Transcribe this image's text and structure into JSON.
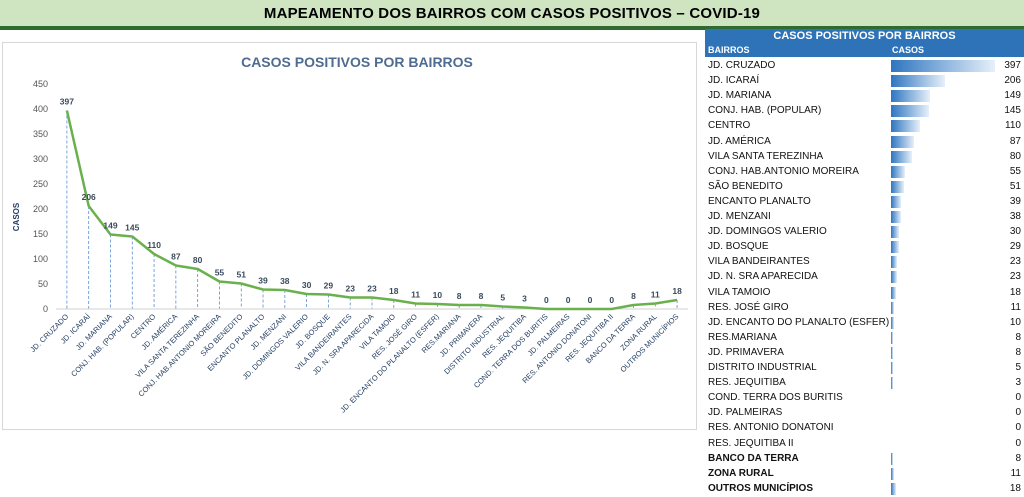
{
  "banner_title": "MAPEAMENTO DOS BAIRROS COM CASOS POSITIVOS – COVID-19",
  "colors": {
    "line": "#6ab04c",
    "bar": "#2e75c0",
    "table_header": "#2e73b8",
    "banner_bg": "#cfe5c2",
    "banner_rule": "#2f6b2f",
    "chart_title": "#4f6b8f"
  },
  "chart_data": {
    "type": "line",
    "title": "CASOS POSITIVOS POR BAIRROS",
    "xlabel": "",
    "ylabel": "CASOS",
    "ylim": [
      0,
      450
    ],
    "yticks": [
      0,
      50,
      100,
      150,
      200,
      250,
      300,
      350,
      400,
      450
    ],
    "grid": false,
    "data_labels": true,
    "categories": [
      "JD. CRUZADO",
      "JD. ICARAÍ",
      "JD. MARIANA",
      "CONJ. HAB. (POPULAR)",
      "CENTRO",
      "JD. AMÉRICA",
      "VILA SANTA TEREZINHA",
      "CONJ. HAB.ANTONIO MOREIRA",
      "SÃO BENEDITO",
      "ENCANTO PLANALTO",
      "JD. MENZANI",
      "JD. DOMINGOS VALERIO",
      "JD. BOSQUE",
      "VILA BANDEIRANTES",
      "JD. N. SRA APARECIDA",
      "VILA TAMOIO",
      "RES. JOSÉ GIRO",
      "JD. ENCANTO DO PLANALTO (ESFER)",
      "RES.MARIANA",
      "JD. PRIMAVERA",
      "DISTRITO INDUSTRIAL",
      "RES. JEQUITIBA",
      "COND. TERRA DOS BURITIS",
      "JD. PALMEIRAS",
      "RES. ANTONIO DONATONI",
      "RES. JEQUITIBA II",
      "BANCO DA TERRA",
      "ZONA RURAL",
      "OUTROS MUNICÍPIOS"
    ],
    "values": [
      397,
      206,
      149,
      145,
      110,
      87,
      80,
      55,
      51,
      39,
      38,
      30,
      29,
      23,
      23,
      18,
      11,
      10,
      8,
      8,
      5,
      3,
      0,
      0,
      0,
      0,
      8,
      11,
      18
    ]
  },
  "table": {
    "title": "CASOS POSITIVOS POR BAIRROS",
    "headers": {
      "bairros": "BAIRROS",
      "casos": "CASOS"
    },
    "bar_max": 397,
    "rows": [
      {
        "name": "JD. CRUZADO",
        "value": 397,
        "bold": false
      },
      {
        "name": "JD. ICARAÍ",
        "value": 206,
        "bold": false
      },
      {
        "name": "JD. MARIANA",
        "value": 149,
        "bold": false
      },
      {
        "name": "CONJ. HAB. (POPULAR)",
        "value": 145,
        "bold": false
      },
      {
        "name": "CENTRO",
        "value": 110,
        "bold": false
      },
      {
        "name": "JD. AMÉRICA",
        "value": 87,
        "bold": false
      },
      {
        "name": "VILA SANTA TEREZINHA",
        "value": 80,
        "bold": false
      },
      {
        "name": "CONJ. HAB.ANTONIO MOREIRA",
        "value": 55,
        "bold": false
      },
      {
        "name": "SÃO BENEDITO",
        "value": 51,
        "bold": false
      },
      {
        "name": "ENCANTO PLANALTO",
        "value": 39,
        "bold": false
      },
      {
        "name": "JD. MENZANI",
        "value": 38,
        "bold": false
      },
      {
        "name": "JD. DOMINGOS VALERIO",
        "value": 30,
        "bold": false
      },
      {
        "name": "JD. BOSQUE",
        "value": 29,
        "bold": false
      },
      {
        "name": "VILA BANDEIRANTES",
        "value": 23,
        "bold": false
      },
      {
        "name": "JD. N. SRA APARECIDA",
        "value": 23,
        "bold": false
      },
      {
        "name": "VILA TAMOIO",
        "value": 18,
        "bold": false
      },
      {
        "name": "RES. JOSÉ GIRO",
        "value": 11,
        "bold": false
      },
      {
        "name": "JD. ENCANTO DO PLANALTO (ESFER)",
        "value": 10,
        "bold": false
      },
      {
        "name": "RES.MARIANA",
        "value": 8,
        "bold": false
      },
      {
        "name": "JD. PRIMAVERA",
        "value": 8,
        "bold": false
      },
      {
        "name": "DISTRITO INDUSTRIAL",
        "value": 5,
        "bold": false
      },
      {
        "name": "RES. JEQUITIBA",
        "value": 3,
        "bold": false
      },
      {
        "name": "COND. TERRA DOS BURITIS",
        "value": 0,
        "bold": false
      },
      {
        "name": "JD. PALMEIRAS",
        "value": 0,
        "bold": false
      },
      {
        "name": "RES. ANTONIO DONATONI",
        "value": 0,
        "bold": false
      },
      {
        "name": "RES. JEQUITIBA II",
        "value": 0,
        "bold": false
      },
      {
        "name": "BANCO DA TERRA",
        "value": 8,
        "bold": true
      },
      {
        "name": "ZONA RURAL",
        "value": 11,
        "bold": true
      },
      {
        "name": "OUTROS MUNICÍPIOS",
        "value": 18,
        "bold": true
      }
    ]
  }
}
